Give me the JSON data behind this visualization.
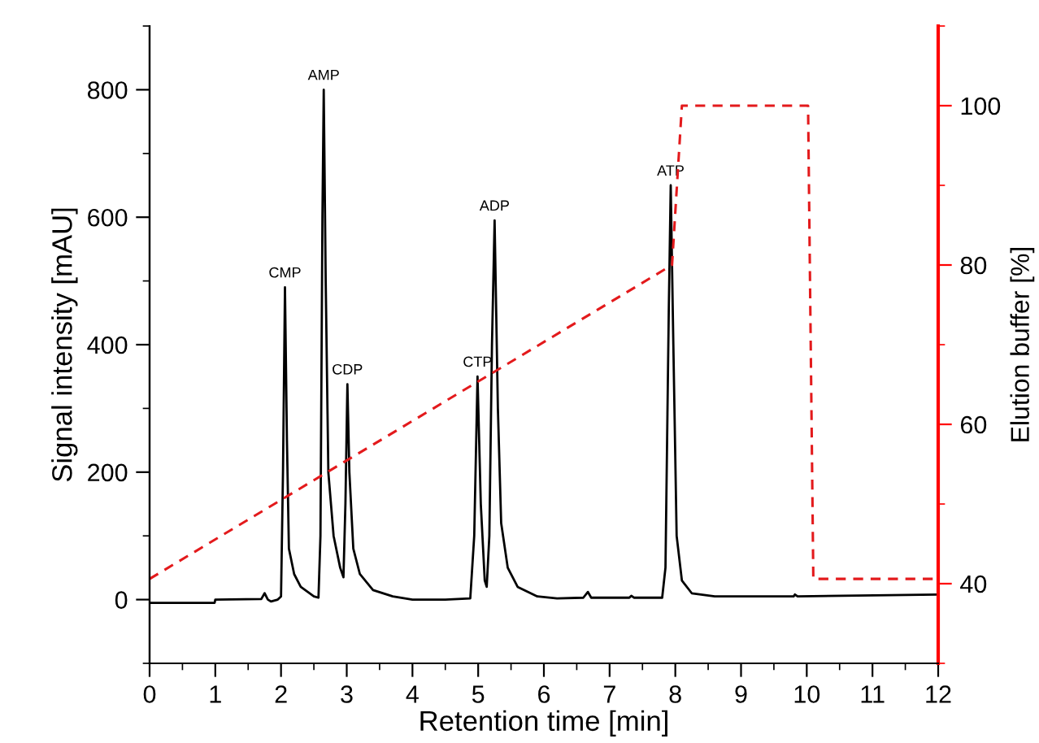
{
  "chart_data": {
    "type": "line",
    "xlabel": "Retention time [min]",
    "ylabel": "Signal intensity [mAU]",
    "y2label": "Elution buffer [%]",
    "xlim": [
      0,
      12
    ],
    "xticks": [
      0,
      1,
      2,
      3,
      4,
      5,
      6,
      7,
      8,
      9,
      10,
      11,
      12
    ],
    "ylim": [
      -100,
      900
    ],
    "yticks": [
      0,
      200,
      400,
      600,
      800
    ],
    "y2lim": [
      30,
      110
    ],
    "y2ticks": [
      40,
      60,
      80,
      100
    ],
    "grid": false,
    "legend": false,
    "marker": "none",
    "series": [
      {
        "color": "#000000",
        "line_style": "solid",
        "x": [
          0,
          0.99,
          1.0,
          1.7,
          1.75,
          1.8,
          1.85,
          1.95,
          2.0,
          2.03,
          2.06,
          2.09,
          2.12,
          2.2,
          2.3,
          2.5,
          2.57,
          2.6,
          2.63,
          2.65,
          2.68,
          2.72,
          2.8,
          2.9,
          2.95,
          2.98,
          3.01,
          3.04,
          3.1,
          3.2,
          3.4,
          3.7,
          4.0,
          4.5,
          4.88,
          4.94,
          4.99,
          5.04,
          5.1,
          5.13,
          5.17,
          5.21,
          5.25,
          5.3,
          5.35,
          5.45,
          5.6,
          5.9,
          6.2,
          6.6,
          6.67,
          6.72,
          7.3,
          7.33,
          7.37,
          7.8,
          7.85,
          7.9,
          7.93,
          7.97,
          8.02,
          8.1,
          8.25,
          8.6,
          9.8,
          9.82,
          9.86,
          12
        ],
        "values": [
          -5,
          -5,
          0,
          1,
          10,
          0,
          -3,
          0,
          5,
          200,
          490,
          250,
          80,
          40,
          20,
          5,
          3,
          100,
          600,
          800,
          500,
          200,
          100,
          50,
          35,
          150,
          338,
          200,
          80,
          40,
          15,
          5,
          0,
          0,
          2,
          100,
          350,
          150,
          30,
          20,
          100,
          400,
          595,
          300,
          120,
          50,
          20,
          5,
          2,
          3,
          12,
          3,
          3,
          6,
          3,
          3,
          50,
          450,
          650,
          400,
          100,
          30,
          10,
          5,
          5,
          8,
          5,
          8
        ]
      },
      {
        "color": "#e31a1c",
        "line_style": "dashed",
        "axis": "y2",
        "x": [
          0,
          7.95,
          8.1,
          10.02,
          10.1,
          12
        ],
        "values": [
          40.6,
          80,
          100,
          100,
          40.6,
          40.6
        ]
      }
    ],
    "annotations": [
      {
        "text": "CMP",
        "x": 2.06,
        "y": 490
      },
      {
        "text": "AMP",
        "x": 2.65,
        "y": 800
      },
      {
        "text": "CDP",
        "x": 3.01,
        "y": 338
      },
      {
        "text": "CTP",
        "x": 4.99,
        "y": 350
      },
      {
        "text": "ADP",
        "x": 5.25,
        "y": 595
      },
      {
        "text": "ATP",
        "x": 7.93,
        "y": 650
      }
    ]
  }
}
